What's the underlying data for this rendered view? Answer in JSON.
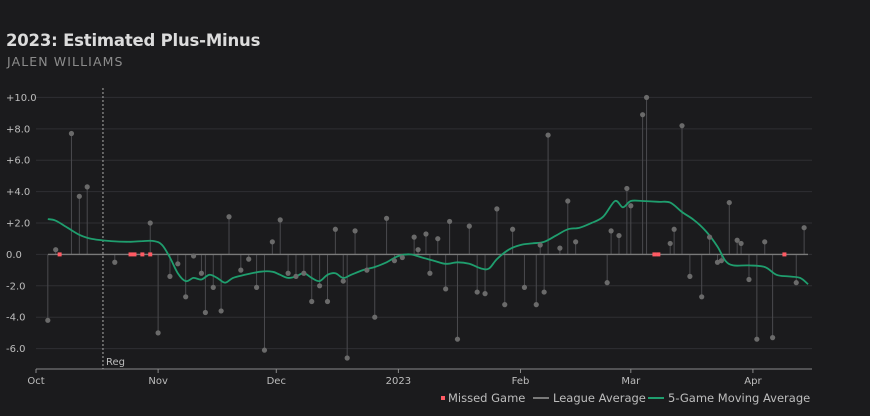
{
  "colors": {
    "background": "#1b1b1d",
    "grid": "#2f2f33",
    "point": "#6a6a6a",
    "stem": "#4a4a4e",
    "missed": "#ff5a63",
    "league_avg": "#7a7a7a",
    "moving_avg": "#1f9e6e",
    "reg_line": "#aaaaaa"
  },
  "chart_data": {
    "type": "scatter",
    "title": "2023: Estimated Plus-Minus",
    "subtitle": "JALEN WILLIAMS",
    "x_axis": {
      "type": "date",
      "range": [
        "2022-10-01",
        "2023-04-16"
      ],
      "ticks": [
        {
          "label": "Oct",
          "date": "2022-10-01"
        },
        {
          "label": "Nov",
          "date": "2022-11-01"
        },
        {
          "label": "Dec",
          "date": "2022-12-01"
        },
        {
          "label": "2023",
          "date": "2023-01-01"
        },
        {
          "label": "Feb",
          "date": "2023-02-01"
        },
        {
          "label": "Mar",
          "date": "2023-03-01"
        },
        {
          "label": "Apr",
          "date": "2023-04-01"
        }
      ]
    },
    "y_axis": {
      "range": [
        -7.3,
        10.6
      ],
      "ticks": [
        {
          "label": "+10.0",
          "value": 10
        },
        {
          "label": "+8.0",
          "value": 8
        },
        {
          "label": "+6.0",
          "value": 6
        },
        {
          "label": "+4.0",
          "value": 4
        },
        {
          "label": "+2.0",
          "value": 2
        },
        {
          "label": "0.0",
          "value": 0
        },
        {
          "label": "-2.0",
          "value": -2
        },
        {
          "label": "-4.0",
          "value": -4
        },
        {
          "label": "-6.0",
          "value": -6
        }
      ]
    },
    "grid": true,
    "annotations": [
      {
        "label": "Reg",
        "date": "2022-10-18"
      }
    ],
    "legend": {
      "position": "bottom-right",
      "items": [
        {
          "label": "Missed Game",
          "kind": "dot"
        },
        {
          "label": "League Average",
          "kind": "league"
        },
        {
          "label": "5-Game Moving Average",
          "kind": "moving"
        }
      ]
    },
    "league_average": 0,
    "games": [
      {
        "date": "2022-10-04",
        "value": -4.2
      },
      {
        "date": "2022-10-06",
        "value": 0.3
      },
      {
        "date": "2022-10-10",
        "value": 7.7
      },
      {
        "date": "2022-10-12",
        "value": 3.7
      },
      {
        "date": "2022-10-14",
        "value": 4.3
      },
      {
        "date": "2022-10-21",
        "value": -0.5
      },
      {
        "date": "2022-10-30",
        "value": 2.0
      },
      {
        "date": "2022-11-01",
        "value": -5.0
      },
      {
        "date": "2022-11-04",
        "value": -1.4
      },
      {
        "date": "2022-11-06",
        "value": -0.6
      },
      {
        "date": "2022-11-08",
        "value": -2.7
      },
      {
        "date": "2022-11-10",
        "value": -0.1
      },
      {
        "date": "2022-11-12",
        "value": -1.2
      },
      {
        "date": "2022-11-13",
        "value": -3.7
      },
      {
        "date": "2022-11-15",
        "value": -2.1
      },
      {
        "date": "2022-11-17",
        "value": -3.6
      },
      {
        "date": "2022-11-19",
        "value": 2.4
      },
      {
        "date": "2022-11-22",
        "value": -1.0
      },
      {
        "date": "2022-11-24",
        "value": -0.3
      },
      {
        "date": "2022-11-26",
        "value": -2.1
      },
      {
        "date": "2022-11-28",
        "value": -6.1
      },
      {
        "date": "2022-11-30",
        "value": 0.8
      },
      {
        "date": "2022-12-02",
        "value": 2.2
      },
      {
        "date": "2022-12-04",
        "value": -1.2
      },
      {
        "date": "2022-12-06",
        "value": -1.4
      },
      {
        "date": "2022-12-08",
        "value": -1.2
      },
      {
        "date": "2022-12-10",
        "value": -3.0
      },
      {
        "date": "2022-12-12",
        "value": -2.0
      },
      {
        "date": "2022-12-14",
        "value": -3.0
      },
      {
        "date": "2022-12-16",
        "value": 1.6
      },
      {
        "date": "2022-12-18",
        "value": -1.7
      },
      {
        "date": "2022-12-19",
        "value": -6.6
      },
      {
        "date": "2022-12-21",
        "value": 1.5
      },
      {
        "date": "2022-12-24",
        "value": -1.0
      },
      {
        "date": "2022-12-26",
        "value": -4.0
      },
      {
        "date": "2022-12-29",
        "value": 2.3
      },
      {
        "date": "2022-12-31",
        "value": -0.4
      },
      {
        "date": "2023-01-02",
        "value": -0.2
      },
      {
        "date": "2023-01-05",
        "value": 1.1
      },
      {
        "date": "2023-01-06",
        "value": 0.3
      },
      {
        "date": "2023-01-08",
        "value": 1.3
      },
      {
        "date": "2023-01-09",
        "value": -1.2
      },
      {
        "date": "2023-01-11",
        "value": 1.0
      },
      {
        "date": "2023-01-13",
        "value": -2.2
      },
      {
        "date": "2023-01-14",
        "value": 2.1
      },
      {
        "date": "2023-01-16",
        "value": -5.4
      },
      {
        "date": "2023-01-19",
        "value": 1.8
      },
      {
        "date": "2023-01-21",
        "value": -2.4
      },
      {
        "date": "2023-01-23",
        "value": -2.5
      },
      {
        "date": "2023-01-26",
        "value": 2.9
      },
      {
        "date": "2023-01-28",
        "value": -3.2
      },
      {
        "date": "2023-01-30",
        "value": 1.6
      },
      {
        "date": "2023-02-02",
        "value": -2.1
      },
      {
        "date": "2023-02-05",
        "value": -3.2
      },
      {
        "date": "2023-02-06",
        "value": 0.6
      },
      {
        "date": "2023-02-07",
        "value": -2.4
      },
      {
        "date": "2023-02-08",
        "value": 7.6
      },
      {
        "date": "2023-02-11",
        "value": 0.4
      },
      {
        "date": "2023-02-13",
        "value": 3.4
      },
      {
        "date": "2023-02-15",
        "value": 0.8
      },
      {
        "date": "2023-02-23",
        "value": -1.8
      },
      {
        "date": "2023-02-24",
        "value": 1.5
      },
      {
        "date": "2023-02-26",
        "value": 1.2
      },
      {
        "date": "2023-02-28",
        "value": 4.2
      },
      {
        "date": "2023-03-01",
        "value": 3.1
      },
      {
        "date": "2023-03-04",
        "value": 8.9
      },
      {
        "date": "2023-03-05",
        "value": 10.0
      },
      {
        "date": "2023-03-11",
        "value": 0.7
      },
      {
        "date": "2023-03-12",
        "value": 1.6
      },
      {
        "date": "2023-03-14",
        "value": 8.2
      },
      {
        "date": "2023-03-16",
        "value": -1.4
      },
      {
        "date": "2023-03-19",
        "value": -2.7
      },
      {
        "date": "2023-03-21",
        "value": 1.1
      },
      {
        "date": "2023-03-23",
        "value": -0.5
      },
      {
        "date": "2023-03-24",
        "value": -0.4
      },
      {
        "date": "2023-03-26",
        "value": 3.3
      },
      {
        "date": "2023-03-28",
        "value": 0.9
      },
      {
        "date": "2023-03-29",
        "value": 0.7
      },
      {
        "date": "2023-03-31",
        "value": -1.6
      },
      {
        "date": "2023-04-02",
        "value": -5.4
      },
      {
        "date": "2023-04-04",
        "value": 0.8
      },
      {
        "date": "2023-04-06",
        "value": -5.3
      },
      {
        "date": "2023-04-12",
        "value": -1.8
      },
      {
        "date": "2023-04-14",
        "value": 1.7
      }
    ],
    "missed_games": [
      "2022-10-07",
      "2022-10-25",
      "2022-10-26",
      "2022-10-28",
      "2022-10-30",
      "2023-03-07",
      "2023-03-08",
      "2023-04-09"
    ],
    "moving_average": [
      {
        "date": "2022-10-04",
        "value": 2.25
      },
      {
        "date": "2022-10-06",
        "value": 2.15
      },
      {
        "date": "2022-10-09",
        "value": 1.7
      },
      {
        "date": "2022-10-12",
        "value": 1.25
      },
      {
        "date": "2022-10-15",
        "value": 1.0
      },
      {
        "date": "2022-10-20",
        "value": 0.85
      },
      {
        "date": "2022-10-25",
        "value": 0.8
      },
      {
        "date": "2022-10-28",
        "value": 0.85
      },
      {
        "date": "2022-10-31",
        "value": 0.85
      },
      {
        "date": "2022-11-02",
        "value": 0.6
      },
      {
        "date": "2022-11-04",
        "value": -0.2
      },
      {
        "date": "2022-11-06",
        "value": -1.2
      },
      {
        "date": "2022-11-08",
        "value": -1.7
      },
      {
        "date": "2022-11-10",
        "value": -1.5
      },
      {
        "date": "2022-11-12",
        "value": -1.6
      },
      {
        "date": "2022-11-14",
        "value": -1.3
      },
      {
        "date": "2022-11-16",
        "value": -1.5
      },
      {
        "date": "2022-11-18",
        "value": -1.8
      },
      {
        "date": "2022-11-20",
        "value": -1.5
      },
      {
        "date": "2022-11-23",
        "value": -1.3
      },
      {
        "date": "2022-11-27",
        "value": -1.1
      },
      {
        "date": "2022-11-30",
        "value": -1.1
      },
      {
        "date": "2022-12-02",
        "value": -1.3
      },
      {
        "date": "2022-12-04",
        "value": -1.5
      },
      {
        "date": "2022-12-06",
        "value": -1.4
      },
      {
        "date": "2022-12-08",
        "value": -1.2
      },
      {
        "date": "2022-12-10",
        "value": -1.5
      },
      {
        "date": "2022-12-12",
        "value": -1.7
      },
      {
        "date": "2022-12-14",
        "value": -1.3
      },
      {
        "date": "2022-12-16",
        "value": -1.2
      },
      {
        "date": "2022-12-18",
        "value": -1.5
      },
      {
        "date": "2022-12-20",
        "value": -1.3
      },
      {
        "date": "2022-12-23",
        "value": -1.0
      },
      {
        "date": "2022-12-26",
        "value": -0.8
      },
      {
        "date": "2022-12-29",
        "value": -0.5
      },
      {
        "date": "2023-01-01",
        "value": -0.1
      },
      {
        "date": "2023-01-04",
        "value": 0.0
      },
      {
        "date": "2023-01-07",
        "value": -0.2
      },
      {
        "date": "2023-01-10",
        "value": -0.4
      },
      {
        "date": "2023-01-13",
        "value": -0.6
      },
      {
        "date": "2023-01-16",
        "value": -0.5
      },
      {
        "date": "2023-01-19",
        "value": -0.6
      },
      {
        "date": "2023-01-22",
        "value": -0.9
      },
      {
        "date": "2023-01-24",
        "value": -0.9
      },
      {
        "date": "2023-01-26",
        "value": -0.3
      },
      {
        "date": "2023-01-29",
        "value": 0.3
      },
      {
        "date": "2023-02-01",
        "value": 0.6
      },
      {
        "date": "2023-02-04",
        "value": 0.7
      },
      {
        "date": "2023-02-07",
        "value": 0.8
      },
      {
        "date": "2023-02-10",
        "value": 1.2
      },
      {
        "date": "2023-02-13",
        "value": 1.6
      },
      {
        "date": "2023-02-16",
        "value": 1.7
      },
      {
        "date": "2023-02-19",
        "value": 2.0
      },
      {
        "date": "2023-02-22",
        "value": 2.4
      },
      {
        "date": "2023-02-25",
        "value": 3.4
      },
      {
        "date": "2023-02-27",
        "value": 3.0
      },
      {
        "date": "2023-03-01",
        "value": 3.4
      },
      {
        "date": "2023-03-04",
        "value": 3.4
      },
      {
        "date": "2023-03-08",
        "value": 3.35
      },
      {
        "date": "2023-03-11",
        "value": 3.3
      },
      {
        "date": "2023-03-14",
        "value": 2.7
      },
      {
        "date": "2023-03-17",
        "value": 2.2
      },
      {
        "date": "2023-03-20",
        "value": 1.5
      },
      {
        "date": "2023-03-23",
        "value": 0.5
      },
      {
        "date": "2023-03-25",
        "value": -0.4
      },
      {
        "date": "2023-03-27",
        "value": -0.7
      },
      {
        "date": "2023-03-31",
        "value": -0.7
      },
      {
        "date": "2023-04-04",
        "value": -0.8
      },
      {
        "date": "2023-04-07",
        "value": -1.3
      },
      {
        "date": "2023-04-10",
        "value": -1.4
      },
      {
        "date": "2023-04-13",
        "value": -1.5
      },
      {
        "date": "2023-04-15",
        "value": -1.9
      }
    ]
  }
}
